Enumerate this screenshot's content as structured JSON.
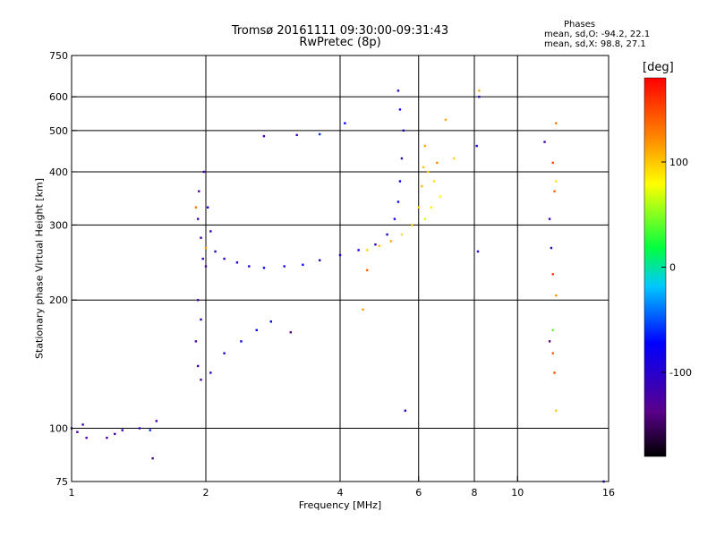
{
  "chart_data": {
    "type": "scatter",
    "title": "Tromsø 20161111 09:30:00-09:31:43",
    "subtitle": "RwPretec (8p)",
    "xlabel": "Frequency [MHz]",
    "ylabel": "Stationary phase Virtual Height [km]",
    "x_scale": "log",
    "y_scale": "log",
    "xlim": [
      1,
      16
    ],
    "ylim": [
      75,
      750
    ],
    "x_ticks": [
      1,
      2,
      4,
      6,
      8,
      10,
      16
    ],
    "x_tick_labels": [
      "1",
      "2",
      "4",
      "6",
      "8",
      "10",
      "16"
    ],
    "y_ticks": [
      75,
      100,
      200,
      300,
      400,
      500,
      600,
      750
    ],
    "y_tick_labels": [
      "75",
      "100",
      "200",
      "300",
      "400",
      "500",
      "600",
      "750"
    ],
    "grid": true,
    "phase_stats": {
      "heading": "Phases",
      "o_line": "mean, sd,O: -94.2, 22.1",
      "x_line": "mean, sd,X:  98.8, 27.1"
    },
    "colorbar": {
      "unit_label": "[deg]",
      "range": [
        -180,
        180
      ],
      "ticks": [
        100,
        0,
        -100
      ],
      "tick_labels": [
        "100",
        "0",
        "-100"
      ]
    },
    "series": [
      {
        "polarization": "O",
        "color_by_phase": true,
        "points": [
          {
            "x": 1.0,
            "y": 100,
            "p": -110
          },
          {
            "x": 1.03,
            "y": 98,
            "p": -120
          },
          {
            "x": 1.06,
            "y": 102,
            "p": -115
          },
          {
            "x": 1.08,
            "y": 95,
            "p": -130
          },
          {
            "x": 1.2,
            "y": 95,
            "p": -125
          },
          {
            "x": 1.25,
            "y": 97,
            "p": -120
          },
          {
            "x": 1.3,
            "y": 99,
            "p": -110
          },
          {
            "x": 1.42,
            "y": 100,
            "p": -105
          },
          {
            "x": 1.5,
            "y": 99,
            "p": -60
          },
          {
            "x": 1.55,
            "y": 104,
            "p": -120
          },
          {
            "x": 1.52,
            "y": 85,
            "p": -140
          },
          {
            "x": 1.92,
            "y": 310,
            "p": -115
          },
          {
            "x": 1.95,
            "y": 280,
            "p": -120
          },
          {
            "x": 1.97,
            "y": 250,
            "p": -110
          },
          {
            "x": 2.0,
            "y": 240,
            "p": -125
          },
          {
            "x": 1.93,
            "y": 360,
            "p": -130
          },
          {
            "x": 2.02,
            "y": 330,
            "p": -100
          },
          {
            "x": 1.98,
            "y": 400,
            "p": -120
          },
          {
            "x": 2.05,
            "y": 290,
            "p": -115
          },
          {
            "x": 2.1,
            "y": 260,
            "p": -105
          },
          {
            "x": 2.2,
            "y": 250,
            "p": -110
          },
          {
            "x": 2.35,
            "y": 245,
            "p": -95
          },
          {
            "x": 2.5,
            "y": 240,
            "p": -90
          },
          {
            "x": 2.7,
            "y": 238,
            "p": -85
          },
          {
            "x": 3.0,
            "y": 240,
            "p": -100
          },
          {
            "x": 3.3,
            "y": 242,
            "p": -80
          },
          {
            "x": 3.6,
            "y": 248,
            "p": -95
          },
          {
            "x": 4.0,
            "y": 255,
            "p": -90
          },
          {
            "x": 4.4,
            "y": 262,
            "p": -85
          },
          {
            "x": 4.8,
            "y": 270,
            "p": -100
          },
          {
            "x": 5.1,
            "y": 285,
            "p": -95
          },
          {
            "x": 5.3,
            "y": 310,
            "p": -90
          },
          {
            "x": 5.4,
            "y": 340,
            "p": -85
          },
          {
            "x": 5.45,
            "y": 380,
            "p": -80
          },
          {
            "x": 5.5,
            "y": 430,
            "p": -95
          },
          {
            "x": 5.55,
            "y": 500,
            "p": -100
          },
          {
            "x": 5.45,
            "y": 560,
            "p": -90
          },
          {
            "x": 5.4,
            "y": 620,
            "p": -110
          },
          {
            "x": 1.92,
            "y": 200,
            "p": -120
          },
          {
            "x": 1.95,
            "y": 180,
            "p": -110
          },
          {
            "x": 1.9,
            "y": 160,
            "p": -125
          },
          {
            "x": 1.92,
            "y": 140,
            "p": -115
          },
          {
            "x": 1.95,
            "y": 130,
            "p": -130
          },
          {
            "x": 2.05,
            "y": 135,
            "p": -105
          },
          {
            "x": 2.2,
            "y": 150,
            "p": -100
          },
          {
            "x": 2.4,
            "y": 160,
            "p": -80
          },
          {
            "x": 2.6,
            "y": 170,
            "p": -75
          },
          {
            "x": 2.8,
            "y": 178,
            "p": -70
          },
          {
            "x": 3.1,
            "y": 168,
            "p": -140
          },
          {
            "x": 2.7,
            "y": 485,
            "p": -120
          },
          {
            "x": 3.2,
            "y": 488,
            "p": -115
          },
          {
            "x": 3.6,
            "y": 490,
            "p": -60
          },
          {
            "x": 4.1,
            "y": 520,
            "p": -70
          },
          {
            "x": 5.6,
            "y": 110,
            "p": -110
          },
          {
            "x": 8.2,
            "y": 600,
            "p": -100
          },
          {
            "x": 8.1,
            "y": 460,
            "p": -95
          },
          {
            "x": 8.15,
            "y": 260,
            "p": -100
          },
          {
            "x": 11.5,
            "y": 470,
            "p": -120
          },
          {
            "x": 11.8,
            "y": 310,
            "p": -110
          },
          {
            "x": 11.9,
            "y": 265,
            "p": -100
          },
          {
            "x": 11.8,
            "y": 160,
            "p": -140
          },
          {
            "x": 15.6,
            "y": 75,
            "p": -90
          }
        ]
      },
      {
        "polarization": "X",
        "color_by_phase": true,
        "points": [
          {
            "x": 4.6,
            "y": 262,
            "p": 95
          },
          {
            "x": 4.9,
            "y": 268,
            "p": 100
          },
          {
            "x": 5.2,
            "y": 275,
            "p": 110
          },
          {
            "x": 5.5,
            "y": 285,
            "p": 90
          },
          {
            "x": 5.8,
            "y": 300,
            "p": 100
          },
          {
            "x": 6.0,
            "y": 330,
            "p": 95
          },
          {
            "x": 6.1,
            "y": 370,
            "p": 105
          },
          {
            "x": 6.15,
            "y": 410,
            "p": 100
          },
          {
            "x": 6.2,
            "y": 460,
            "p": 110
          },
          {
            "x": 6.3,
            "y": 400,
            "p": 95
          },
          {
            "x": 6.4,
            "y": 330,
            "p": 85
          },
          {
            "x": 6.5,
            "y": 380,
            "p": 90
          },
          {
            "x": 6.6,
            "y": 420,
            "p": 120
          },
          {
            "x": 6.7,
            "y": 350,
            "p": 80
          },
          {
            "x": 6.2,
            "y": 310,
            "p": 70
          },
          {
            "x": 4.5,
            "y": 190,
            "p": 115
          },
          {
            "x": 4.6,
            "y": 235,
            "p": 140
          },
          {
            "x": 2.0,
            "y": 265,
            "p": 115
          },
          {
            "x": 1.9,
            "y": 330,
            "p": 130
          },
          {
            "x": 6.9,
            "y": 530,
            "p": 110
          },
          {
            "x": 7.2,
            "y": 430,
            "p": 95
          },
          {
            "x": 8.2,
            "y": 620,
            "p": 110
          },
          {
            "x": 12.2,
            "y": 520,
            "p": 130
          },
          {
            "x": 12.0,
            "y": 420,
            "p": 150
          },
          {
            "x": 12.2,
            "y": 380,
            "p": 90
          },
          {
            "x": 12.1,
            "y": 360,
            "p": 140
          },
          {
            "x": 12.0,
            "y": 230,
            "p": 160
          },
          {
            "x": 12.2,
            "y": 205,
            "p": 120
          },
          {
            "x": 12.0,
            "y": 150,
            "p": 140
          },
          {
            "x": 12.1,
            "y": 135,
            "p": 150
          },
          {
            "x": 12.2,
            "y": 110,
            "p": 100
          },
          {
            "x": 12.0,
            "y": 170,
            "p": 40
          }
        ]
      }
    ]
  }
}
